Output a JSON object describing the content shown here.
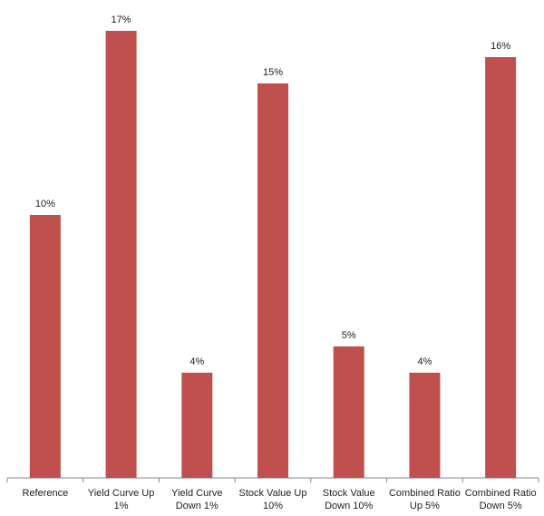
{
  "chart_data": {
    "type": "bar",
    "categories": [
      [
        "Reference"
      ],
      [
        "Yield Curve Up",
        "1%"
      ],
      [
        "Yield Curve",
        "Down 1%"
      ],
      [
        "Stock Value Up",
        "10%"
      ],
      [
        "Stock Value",
        "Down 10%"
      ],
      [
        "Combined Ratio",
        "Up 5%"
      ],
      [
        "Combined Ratio",
        "Down 5%"
      ]
    ],
    "values": [
      10,
      17,
      4,
      15,
      5,
      4,
      16
    ],
    "value_labels": [
      "10%",
      "17%",
      "4%",
      "15%",
      "5%",
      "4%",
      "16%"
    ],
    "ylim": [
      0,
      17
    ],
    "title": "",
    "xlabel": "",
    "ylabel": "",
    "grid": false,
    "legend": "none",
    "bar_color": "#c0504d",
    "axis_color": "#888888"
  }
}
